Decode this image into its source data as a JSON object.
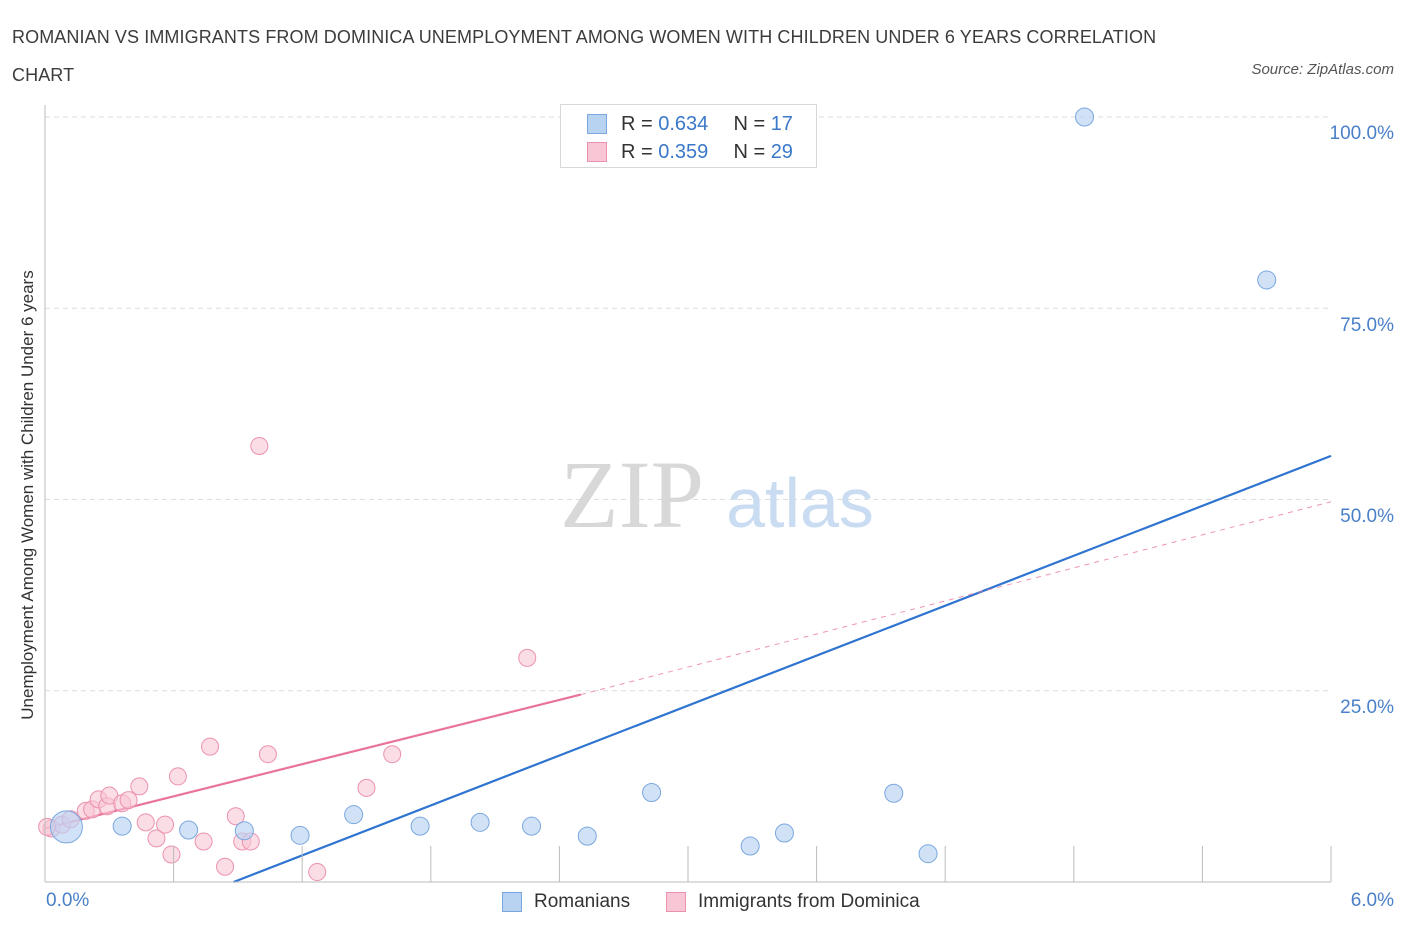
{
  "title": "ROMANIAN VS IMMIGRANTS FROM DOMINICA UNEMPLOYMENT AMONG WOMEN WITH CHILDREN UNDER 6 YEARS CORRELATION CHART",
  "source": "Source: ZipAtlas.com",
  "watermark": {
    "zip": "ZIP",
    "atlas": "atlas"
  },
  "colors": {
    "blue_fill": "#b8d2f2",
    "blue_stroke": "#7aa7de",
    "blue_line": "#2f74d0",
    "pink_fill": "#f8c6d4",
    "pink_stroke": "#ec92ae",
    "pink_line": "#e8729a",
    "grid": "#dcdcdc",
    "tick_text": "#4a80c8"
  },
  "stats": {
    "rows": [
      {
        "series": "Romanians",
        "r_label": "R =",
        "r": "0.634",
        "n_label": "N =",
        "n": "17"
      },
      {
        "series": "Immigrants from Dominica",
        "r_label": "R =",
        "r": "0.359",
        "n_label": "N =",
        "n": "29"
      }
    ]
  },
  "legend": [
    "Romanians",
    "Immigrants from Dominica"
  ],
  "axis": {
    "x_tick_labels": [
      "0.0%",
      "6.0%"
    ],
    "y_tick_labels": [
      "100.0%",
      "75.0%",
      "50.0%",
      "25.0%"
    ]
  },
  "chart_data": {
    "type": "scatter",
    "title": "ROMANIAN VS IMMIGRANTS FROM DOMINICA UNEMPLOYMENT AMONG WOMEN WITH CHILDREN UNDER 6 YEARS CORRELATION CHART",
    "xlabel": "",
    "ylabel": "Unemployment Among Women with Children Under 6 years",
    "xlim": [
      0,
      6
    ],
    "ylim": [
      0,
      100
    ],
    "x_ticks": [
      0,
      6
    ],
    "y_ticks": [
      25,
      50,
      75,
      100
    ],
    "series": [
      {
        "name": "Romanians",
        "r": 0.634,
        "n": 17,
        "points": [
          {
            "x": 0.1,
            "y": 7.2,
            "big": true
          },
          {
            "x": 0.36,
            "y": 7.3
          },
          {
            "x": 0.67,
            "y": 6.8
          },
          {
            "x": 0.93,
            "y": 6.7
          },
          {
            "x": 1.19,
            "y": 6.1
          },
          {
            "x": 1.44,
            "y": 8.8
          },
          {
            "x": 1.75,
            "y": 7.3
          },
          {
            "x": 2.03,
            "y": 7.8
          },
          {
            "x": 2.27,
            "y": 7.3
          },
          {
            "x": 2.53,
            "y": 6.0
          },
          {
            "x": 2.83,
            "y": 11.7
          },
          {
            "x": 3.29,
            "y": 4.7
          },
          {
            "x": 3.45,
            "y": 6.4
          },
          {
            "x": 3.96,
            "y": 11.6
          },
          {
            "x": 4.12,
            "y": 3.7
          },
          {
            "x": 4.85,
            "y": 100.0
          },
          {
            "x": 5.7,
            "y": 78.7
          }
        ],
        "trend": {
          "x": [
            0.88,
            6.0
          ],
          "y": [
            0.0,
            55.7
          ]
        }
      },
      {
        "name": "Immigrants from Dominica",
        "r": 0.359,
        "n": 29,
        "points": [
          {
            "x": 0.03,
            "y": 7.0
          },
          {
            "x": 0.08,
            "y": 7.5
          },
          {
            "x": 0.12,
            "y": 8.2
          },
          {
            "x": 0.19,
            "y": 9.3
          },
          {
            "x": 0.22,
            "y": 9.5
          },
          {
            "x": 0.25,
            "y": 10.8
          },
          {
            "x": 0.29,
            "y": 9.9
          },
          {
            "x": 0.3,
            "y": 11.3
          },
          {
            "x": 0.36,
            "y": 10.3
          },
          {
            "x": 0.39,
            "y": 10.7
          },
          {
            "x": 0.44,
            "y": 12.5
          },
          {
            "x": 0.47,
            "y": 7.8
          },
          {
            "x": 0.52,
            "y": 5.7
          },
          {
            "x": 0.56,
            "y": 7.5
          },
          {
            "x": 0.59,
            "y": 3.6
          },
          {
            "x": 0.62,
            "y": 13.8
          },
          {
            "x": 0.74,
            "y": 5.3
          },
          {
            "x": 0.77,
            "y": 17.7
          },
          {
            "x": 0.84,
            "y": 2.0
          },
          {
            "x": 0.89,
            "y": 8.6
          },
          {
            "x": 0.92,
            "y": 5.3
          },
          {
            "x": 0.96,
            "y": 5.3
          },
          {
            "x": 1.0,
            "y": 57.0
          },
          {
            "x": 1.04,
            "y": 16.7
          },
          {
            "x": 1.27,
            "y": 1.3
          },
          {
            "x": 1.5,
            "y": 12.3
          },
          {
            "x": 1.62,
            "y": 16.7
          },
          {
            "x": 2.25,
            "y": 29.3
          },
          {
            "x": 0.01,
            "y": 7.2
          }
        ],
        "trend_solid": {
          "x": [
            0.0,
            2.5
          ],
          "y": [
            7.0,
            24.5
          ]
        },
        "trend_dashed": {
          "x": [
            2.5,
            6.0
          ],
          "y": [
            24.5,
            49.7
          ]
        }
      }
    ]
  }
}
